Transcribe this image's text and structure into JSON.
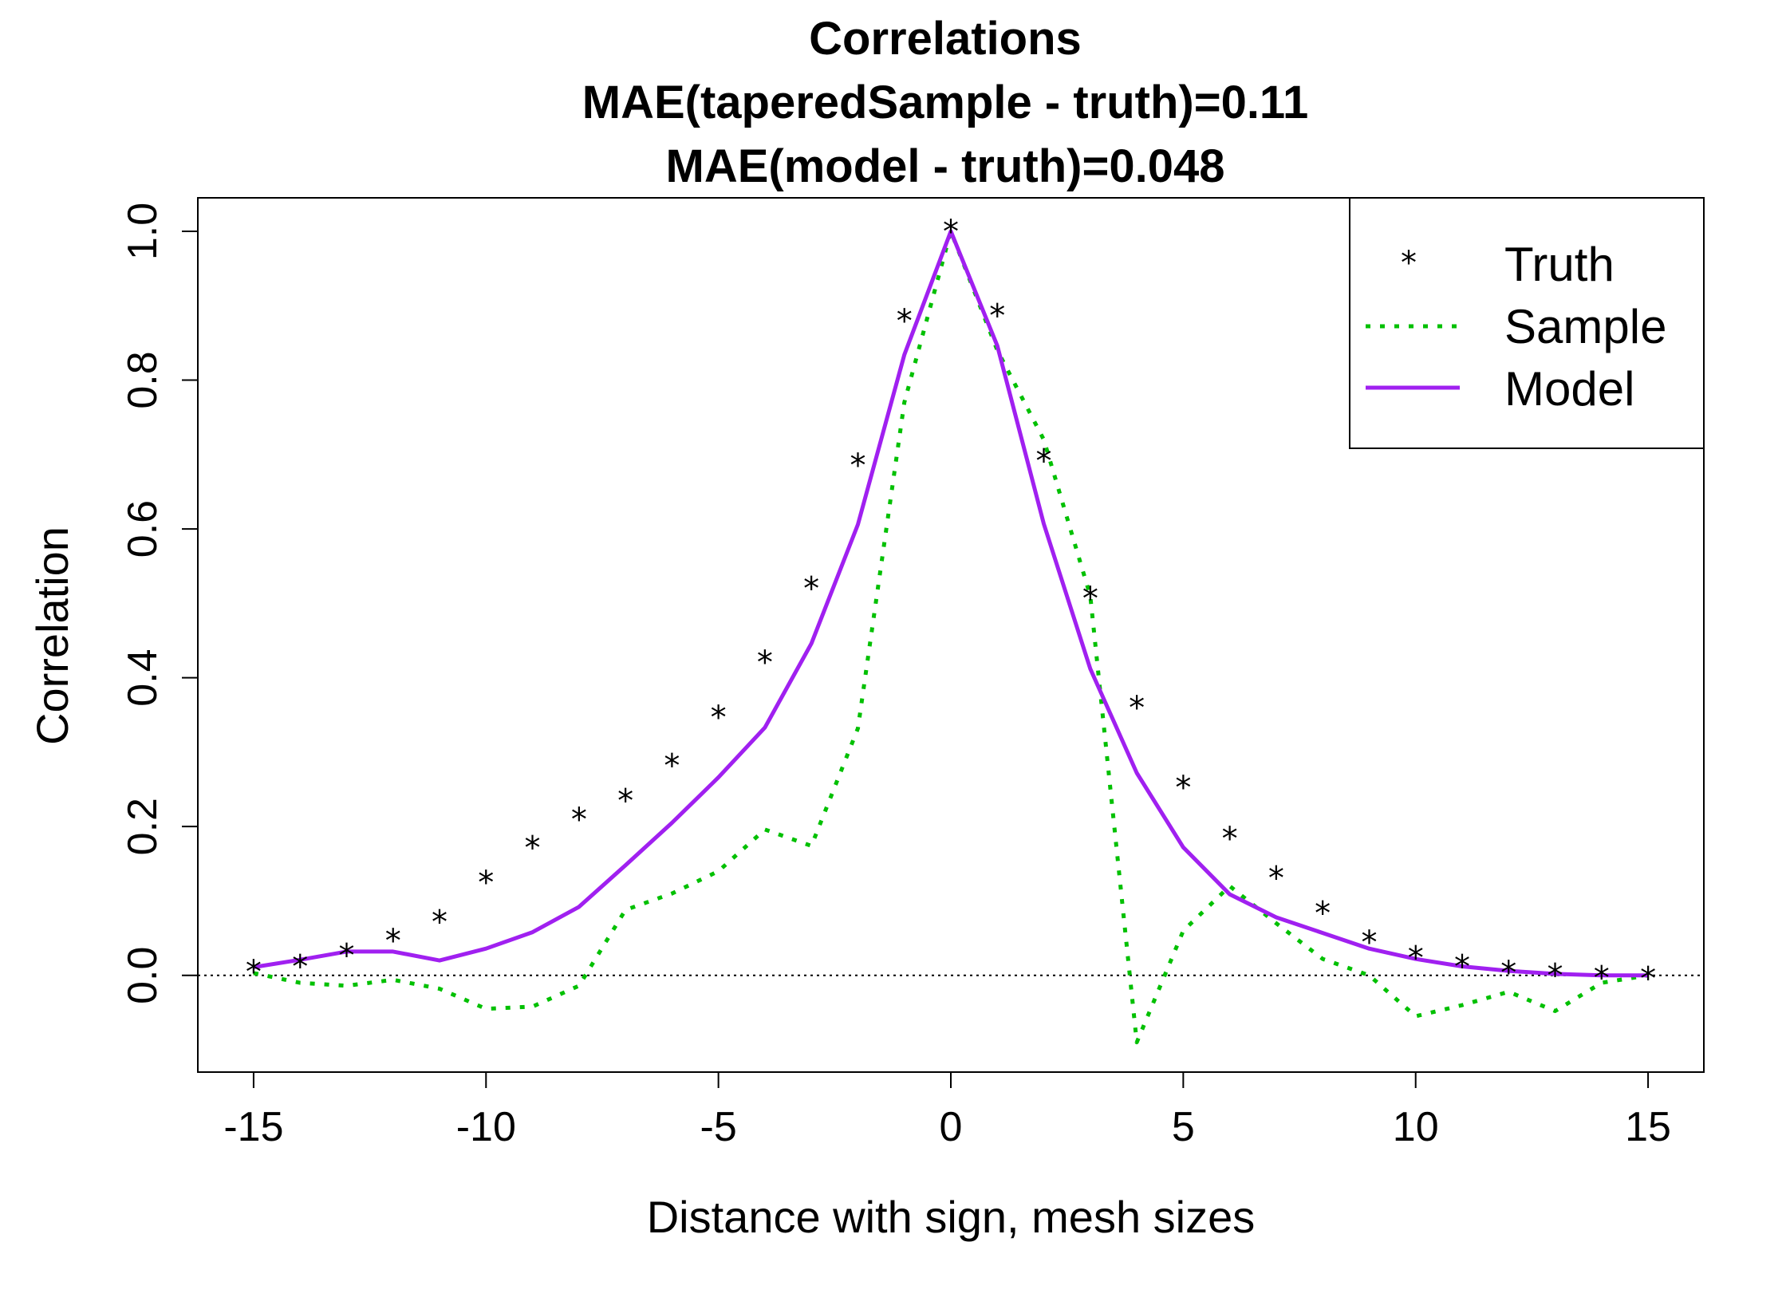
{
  "chart_data": {
    "type": "line",
    "title": "Correlations",
    "subtitle_lines": [
      "MAE(taperedSample - truth)=0.11",
      "MAE(model - truth)=0.048"
    ],
    "xlabel": "Distance with sign, mesh sizes",
    "ylabel": "Correlation",
    "xlim": [
      -16.2,
      16.2
    ],
    "ylim": [
      -0.13,
      1.045
    ],
    "x_ticks": [
      -15,
      -10,
      -5,
      0,
      5,
      10,
      15
    ],
    "x_tick_labels": [
      "-15",
      "-10",
      "-5",
      "0",
      "5",
      "10",
      "15"
    ],
    "y_ticks": [
      0.0,
      0.2,
      0.4,
      0.6,
      0.8,
      1.0
    ],
    "y_tick_labels": [
      "0.0",
      "0.2",
      "0.4",
      "0.6",
      "0.8",
      "1.0"
    ],
    "reference_line_y": 0,
    "x": [
      -15,
      -14,
      -13,
      -12,
      -11,
      -10,
      -9,
      -8,
      -7,
      -6,
      -5,
      -4,
      -3,
      -2,
      -1,
      0,
      1,
      2,
      3,
      4,
      5,
      6,
      7,
      8,
      9,
      10,
      11,
      12,
      13,
      14,
      15
    ],
    "series": [
      {
        "name": "Truth",
        "style": "points",
        "color": "#000000",
        "values": [
          0.005,
          0.012,
          0.027,
          0.047,
          0.072,
          0.125,
          0.172,
          0.21,
          0.235,
          0.282,
          0.347,
          0.421,
          0.52,
          0.686,
          0.88,
          1.0,
          0.887,
          0.692,
          0.507,
          0.36,
          0.253,
          0.184,
          0.131,
          0.084,
          0.045,
          0.024,
          0.012,
          0.004,
          0.0,
          -0.003,
          -0.004
        ]
      },
      {
        "name": "Sample",
        "style": "dotted",
        "color": "#00c000",
        "values": [
          0.003,
          -0.01,
          -0.014,
          -0.006,
          -0.018,
          -0.045,
          -0.042,
          -0.014,
          0.088,
          0.11,
          0.14,
          0.196,
          0.174,
          0.332,
          0.77,
          1.0,
          0.84,
          0.72,
          0.51,
          -0.09,
          0.06,
          0.12,
          0.07,
          0.022,
          0.0,
          -0.055,
          -0.04,
          -0.022,
          -0.048,
          -0.01,
          0.0
        ]
      },
      {
        "name": "Model",
        "style": "solid",
        "color": "#a020f0",
        "values": [
          0.011,
          0.021,
          0.032,
          0.032,
          0.02,
          0.036,
          0.058,
          0.092,
          0.148,
          0.205,
          0.266,
          0.333,
          0.446,
          0.606,
          0.834,
          1.0,
          0.846,
          0.607,
          0.412,
          0.272,
          0.172,
          0.109,
          0.078,
          0.057,
          0.036,
          0.022,
          0.012,
          0.006,
          0.002,
          0.0,
          0.0
        ]
      }
    ],
    "legend": {
      "position": "top-right",
      "entries": [
        {
          "label": "Truth",
          "style": "points",
          "color": "#000000"
        },
        {
          "label": "Sample",
          "style": "dotted",
          "color": "#00c000"
        },
        {
          "label": "Model",
          "style": "solid",
          "color": "#a020f0"
        }
      ]
    }
  }
}
